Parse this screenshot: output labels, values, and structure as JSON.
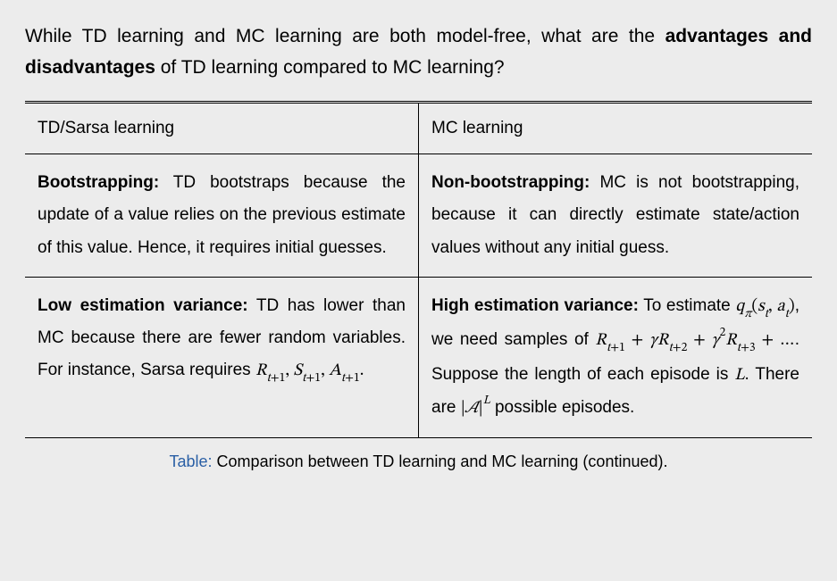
{
  "question_parts": {
    "pre": "While TD learning and MC learning are both model-free, what are the ",
    "bold": "advantages and disadvantages",
    "post": " of TD learning compared to MC learning?"
  },
  "table": {
    "header_left": "TD/Sarsa learning",
    "header_right": "MC learning",
    "row1_left_lead": "Bootstrapping:",
    "row1_left_body": " TD bootstraps because the update of a value relies on the previous estimate of this value. Hence, it requires initial guesses.",
    "row1_right_lead": "Non-bootstrapping:",
    "row1_right_body": " MC is not bootstrapping, because it can directly estimate state/action values without any initial guess.",
    "row2_left_lead": "Low estimation variance:",
    "row2_left_body_pre": " TD has lower than MC because there are fewer random variables. For instance, Sarsa requires ",
    "row2_left_math": "R_{t+1}, S_{t+1}, A_{t+1}.",
    "row2_right_lead": "High estimation variance:",
    "row2_right_body_pre": " To estimate ",
    "row2_right_math1": "q_π(s_t, a_t)",
    "row2_right_body_mid1": ", we need samples of ",
    "row2_right_math2": "R_{t+1} + γR_{t+2} + γ²R_{t+3} + …",
    "row2_right_body_mid2": ". Suppose the length of each episode is ",
    "row2_right_mathL": "L",
    "row2_right_body_mid3": ". There are ",
    "row2_right_math3": "|A|^L",
    "row2_right_body_end": " possible episodes."
  },
  "caption": {
    "label": "Table:",
    "text": " Comparison between TD learning and MC learning (continued)."
  }
}
